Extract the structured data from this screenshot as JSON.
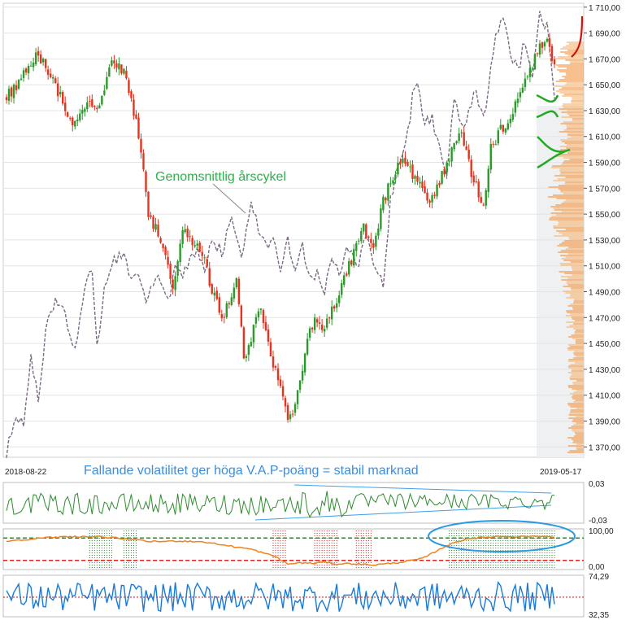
{
  "chart_data": [
    {
      "type": "candlestick",
      "panel": "price",
      "x_start_label": "2018-08-22",
      "x_end_label": "2019-05-17",
      "ylim": [
        1362,
        1713
      ],
      "y_ticks": [
        "1 710,00",
        "1 690,00",
        "1 670,00",
        "1 650,00",
        "1 630,00",
        "1 610,00",
        "1 590,00",
        "1 570,00",
        "1 550,00",
        "1 530,00",
        "1 510,00",
        "1 490,00",
        "1 470,00",
        "1 450,00",
        "1 430,00",
        "1 410,00",
        "1 390,00",
        "1 370,00"
      ],
      "y_tick_values": [
        1710,
        1690,
        1670,
        1650,
        1630,
        1610,
        1590,
        1570,
        1550,
        1530,
        1510,
        1490,
        1470,
        1450,
        1430,
        1410,
        1390,
        1370
      ],
      "close_anchors": [
        [
          0,
          1640
        ],
        [
          5,
          1650
        ],
        [
          12,
          1675
        ],
        [
          18,
          1660
        ],
        [
          24,
          1630
        ],
        [
          28,
          1620
        ],
        [
          33,
          1640
        ],
        [
          38,
          1635
        ],
        [
          43,
          1672
        ],
        [
          48,
          1660
        ],
        [
          52,
          1630
        ],
        [
          55,
          1600
        ],
        [
          58,
          1550
        ],
        [
          61,
          1540
        ],
        [
          64,
          1520
        ],
        [
          68,
          1495
        ],
        [
          72,
          1540
        ],
        [
          76,
          1530
        ],
        [
          80,
          1520
        ],
        [
          84,
          1490
        ],
        [
          88,
          1470
        ],
        [
          91,
          1480
        ],
        [
          94,
          1505
        ],
        [
          97,
          1440
        ],
        [
          100,
          1455
        ],
        [
          104,
          1480
        ],
        [
          108,
          1440
        ],
        [
          112,
          1420
        ],
        [
          115,
          1390
        ],
        [
          118,
          1400
        ],
        [
          121,
          1430
        ],
        [
          124,
          1460
        ],
        [
          127,
          1470
        ],
        [
          130,
          1460
        ],
        [
          134,
          1480
        ],
        [
          138,
          1500
        ],
        [
          142,
          1520
        ],
        [
          146,
          1540
        ],
        [
          150,
          1520
        ],
        [
          154,
          1560
        ],
        [
          158,
          1580
        ],
        [
          162,
          1590
        ],
        [
          166,
          1580
        ],
        [
          170,
          1570
        ],
        [
          174,
          1560
        ],
        [
          178,
          1580
        ],
        [
          182,
          1600
        ],
        [
          186,
          1610
        ],
        [
          189,
          1590
        ],
        [
          192,
          1570
        ],
        [
          195,
          1555
        ],
        [
          198,
          1600
        ],
        [
          202,
          1615
        ],
        [
          206,
          1625
        ],
        [
          210,
          1640
        ],
        [
          214,
          1660
        ],
        [
          218,
          1680
        ],
        [
          221,
          1690
        ],
        [
          224,
          1665
        ]
      ],
      "n_candles": 225,
      "colors": {
        "up": "#2a9a2a",
        "down": "#e8321e"
      },
      "overlay": {
        "name": "Genomsnittlig årscykel",
        "anchors": [
          [
            0,
            1365
          ],
          [
            4,
            1395
          ],
          [
            7,
            1385
          ],
          [
            10,
            1440
          ],
          [
            13,
            1405
          ],
          [
            16,
            1460
          ],
          [
            20,
            1485
          ],
          [
            24,
            1470
          ],
          [
            28,
            1445
          ],
          [
            32,
            1495
          ],
          [
            35,
            1505
          ],
          [
            37,
            1445
          ],
          [
            40,
            1490
          ],
          [
            43,
            1510
          ],
          [
            47,
            1520
          ],
          [
            51,
            1500
          ],
          [
            54,
            1505
          ],
          [
            57,
            1480
          ],
          [
            60,
            1495
          ],
          [
            63,
            1500
          ],
          [
            66,
            1480
          ],
          [
            69,
            1510
          ],
          [
            72,
            1505
          ],
          [
            75,
            1515
          ],
          [
            78,
            1525
          ],
          [
            81,
            1505
          ],
          [
            84,
            1530
          ],
          [
            88,
            1520
          ],
          [
            92,
            1545
          ],
          [
            96,
            1520
          ],
          [
            100,
            1556
          ],
          [
            103,
            1540
          ],
          [
            106,
            1525
          ],
          [
            109,
            1530
          ],
          [
            112,
            1505
          ],
          [
            115,
            1530
          ],
          [
            118,
            1510
          ],
          [
            121,
            1525
          ],
          [
            124,
            1500
          ],
          [
            127,
            1505
          ],
          [
            130,
            1490
          ],
          [
            133,
            1520
          ],
          [
            136,
            1505
          ],
          [
            140,
            1525
          ],
          [
            144,
            1510
          ],
          [
            147,
            1535
          ],
          [
            150,
            1510
          ],
          [
            154,
            1495
          ],
          [
            157,
            1560
          ],
          [
            160,
            1585
          ],
          [
            163,
            1600
          ],
          [
            166,
            1640
          ],
          [
            168,
            1655
          ],
          [
            171,
            1620
          ],
          [
            174,
            1625
          ],
          [
            177,
            1600
          ],
          [
            180,
            1580
          ],
          [
            183,
            1640
          ],
          [
            186,
            1615
          ],
          [
            189,
            1630
          ],
          [
            192,
            1645
          ],
          [
            195,
            1625
          ],
          [
            198,
            1660
          ],
          [
            200,
            1690
          ],
          [
            203,
            1700
          ],
          [
            206,
            1675
          ],
          [
            209,
            1660
          ],
          [
            212,
            1685
          ],
          [
            215,
            1655
          ],
          [
            218,
            1705
          ],
          [
            221,
            1695
          ],
          [
            224,
            1640
          ]
        ],
        "color": "#7a6a82"
      },
      "volume_profile": {
        "color": "#f08a3a"
      },
      "annotations": [
        "Genomsnittlig årscykel",
        "Fallande volatilitet ger höga V.A.P-poäng = stabil marknad"
      ]
    },
    {
      "type": "line",
      "panel": "volatility",
      "ylim": [
        -0.03,
        0.03
      ],
      "y_ticks": [
        "0,03",
        "-0,03"
      ],
      "series_color": "#2e8b2e"
    },
    {
      "type": "line",
      "panel": "vap-score",
      "ylim": [
        0,
        100
      ],
      "y_ticks": [
        "100,00",
        "0,00"
      ],
      "upper_level": 80,
      "lower_level": 20,
      "anchors": [
        [
          0,
          72
        ],
        [
          15,
          80
        ],
        [
          25,
          84
        ],
        [
          40,
          83
        ],
        [
          50,
          76
        ],
        [
          60,
          70
        ],
        [
          70,
          72
        ],
        [
          80,
          70
        ],
        [
          90,
          60
        ],
        [
          100,
          50
        ],
        [
          110,
          30
        ],
        [
          115,
          10
        ],
        [
          120,
          14
        ],
        [
          125,
          12
        ],
        [
          130,
          16
        ],
        [
          135,
          10
        ],
        [
          140,
          12
        ],
        [
          150,
          8
        ],
        [
          160,
          14
        ],
        [
          170,
          25
        ],
        [
          180,
          60
        ],
        [
          188,
          78
        ],
        [
          200,
          84
        ],
        [
          224,
          84
        ]
      ],
      "green_zones": [
        [
          34,
          43
        ],
        [
          48,
          53
        ],
        [
          181,
          224
        ]
      ],
      "red_zones": [
        [
          109,
          114
        ],
        [
          126,
          135
        ],
        [
          143,
          149
        ]
      ],
      "series_color": "#f0821e",
      "upper_color": "#2a8a2a",
      "lower_color": "#dd2222"
    },
    {
      "type": "line",
      "panel": "oscillator",
      "ylim": [
        32.35,
        74.29
      ],
      "y_ticks": [
        "74,29",
        "32,35"
      ],
      "midline": 52,
      "series_color": "#1a7ad8",
      "midline_color": "#dd2222"
    }
  ]
}
